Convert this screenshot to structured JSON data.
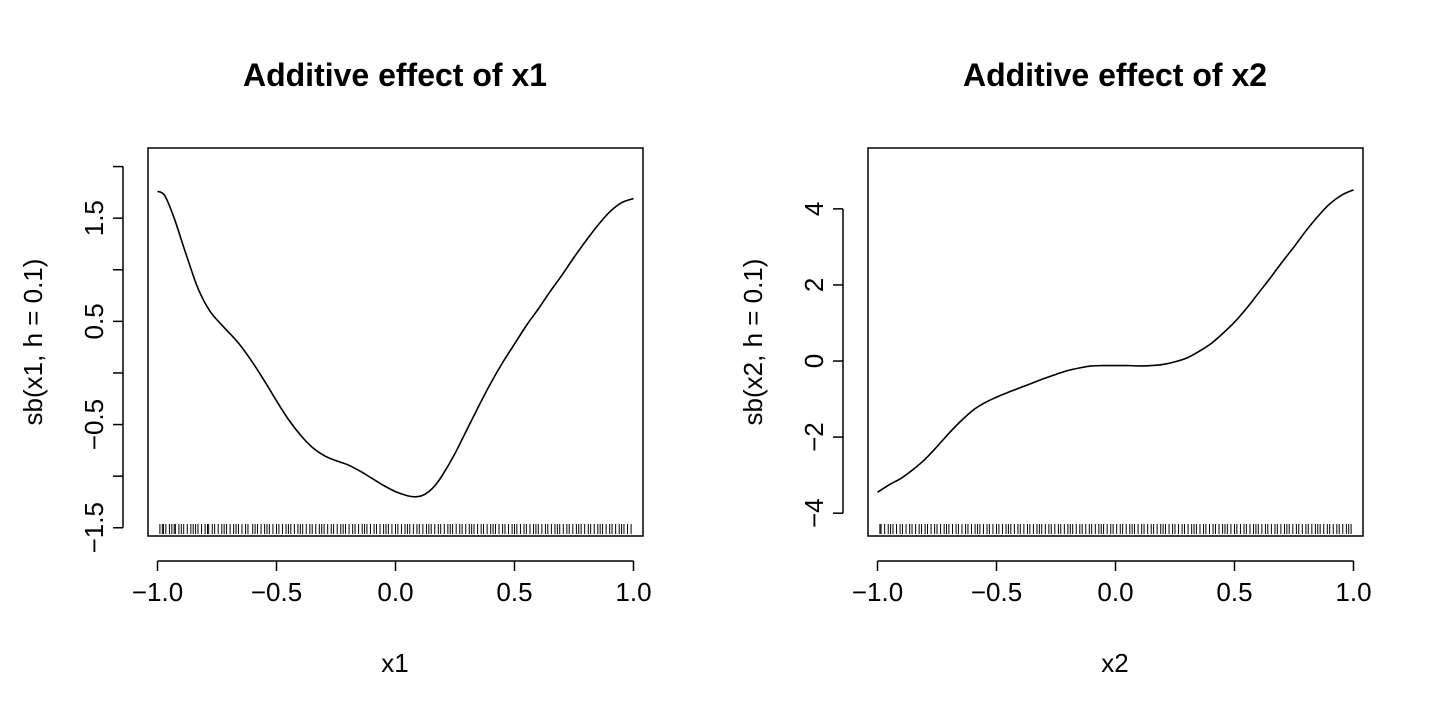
{
  "chart_data": [
    {
      "type": "line",
      "title": "Additive effect of x1",
      "xlabel": "x1",
      "ylabel": "sb(x1, h = 0.1)",
      "xlim": [
        -1.04,
        1.04
      ],
      "ylim": [
        -1.58,
        2.18
      ],
      "x_ticks": [
        -1.0,
        -0.5,
        0.0,
        0.5,
        1.0
      ],
      "x_tick_labels": [
        "−1.0",
        "−0.5",
        "0.0",
        "0.5",
        "1.0"
      ],
      "y_ticks": [
        -1.5,
        -1.0,
        -0.5,
        0.0,
        0.5,
        1.0,
        1.5,
        2.0
      ],
      "y_tick_labels": [
        "−1.5",
        "",
        "−0.5",
        "",
        "0.5",
        "",
        "1.5",
        ""
      ],
      "grid": false,
      "legend": "none",
      "rug": true,
      "line_color": "#000000",
      "series": [
        {
          "x": [
            -1.0,
            -0.97,
            -0.93,
            -0.88,
            -0.83,
            -0.78,
            -0.72,
            -0.66,
            -0.6,
            -0.55,
            -0.5,
            -0.45,
            -0.4,
            -0.35,
            -0.3,
            -0.25,
            -0.2,
            -0.15,
            -0.1,
            -0.05,
            0.0,
            0.05,
            0.08,
            0.11,
            0.14,
            0.17,
            0.2,
            0.25,
            0.3,
            0.35,
            0.4,
            0.45,
            0.5,
            0.55,
            0.6,
            0.65,
            0.7,
            0.75,
            0.8,
            0.85,
            0.9,
            0.95,
            1.0
          ],
          "y": [
            1.76,
            1.72,
            1.5,
            1.15,
            0.82,
            0.6,
            0.44,
            0.29,
            0.1,
            -0.08,
            -0.27,
            -0.45,
            -0.6,
            -0.72,
            -0.8,
            -0.85,
            -0.89,
            -0.95,
            -1.02,
            -1.09,
            -1.15,
            -1.19,
            -1.2,
            -1.19,
            -1.15,
            -1.08,
            -0.98,
            -0.78,
            -0.55,
            -0.32,
            -0.1,
            0.1,
            0.28,
            0.46,
            0.62,
            0.79,
            0.95,
            1.12,
            1.28,
            1.43,
            1.56,
            1.65,
            1.69
          ]
        }
      ],
      "rug_x": [
        -0.99,
        -0.98,
        -0.975,
        -0.965,
        -0.95,
        -0.94,
        -0.93,
        -0.925,
        -0.91,
        -0.9,
        -0.89,
        -0.875,
        -0.86,
        -0.85,
        -0.84,
        -0.83,
        -0.815,
        -0.8,
        -0.79,
        -0.785,
        -0.77,
        -0.76,
        -0.745,
        -0.73,
        -0.72,
        -0.71,
        -0.695,
        -0.68,
        -0.67,
        -0.66,
        -0.645,
        -0.63,
        -0.62,
        -0.6,
        -0.59,
        -0.58,
        -0.565,
        -0.55,
        -0.54,
        -0.53,
        -0.515,
        -0.5,
        -0.49,
        -0.475,
        -0.46,
        -0.45,
        -0.44,
        -0.425,
        -0.41,
        -0.4,
        -0.39,
        -0.375,
        -0.36,
        -0.35,
        -0.335,
        -0.32,
        -0.31,
        -0.3,
        -0.285,
        -0.27,
        -0.26,
        -0.245,
        -0.23,
        -0.22,
        -0.21,
        -0.195,
        -0.18,
        -0.17,
        -0.155,
        -0.14,
        -0.13,
        -0.12,
        -0.105,
        -0.09,
        -0.08,
        -0.065,
        -0.05,
        -0.04,
        -0.03,
        -0.015,
        0.0,
        0.01,
        0.025,
        0.04,
        0.05,
        0.06,
        0.075,
        0.09,
        0.1,
        0.115,
        0.13,
        0.14,
        0.15,
        0.165,
        0.18,
        0.19,
        0.205,
        0.22,
        0.23,
        0.24,
        0.255,
        0.27,
        0.28,
        0.295,
        0.31,
        0.32,
        0.33,
        0.345,
        0.36,
        0.37,
        0.385,
        0.4,
        0.41,
        0.42,
        0.435,
        0.45,
        0.46,
        0.475,
        0.49,
        0.5,
        0.51,
        0.525,
        0.54,
        0.55,
        0.565,
        0.58,
        0.59,
        0.6,
        0.615,
        0.63,
        0.64,
        0.655,
        0.67,
        0.68,
        0.69,
        0.705,
        0.72,
        0.73,
        0.745,
        0.76,
        0.77,
        0.78,
        0.795,
        0.81,
        0.82,
        0.835,
        0.85,
        0.86,
        0.87,
        0.885,
        0.9,
        0.91,
        0.925,
        0.94,
        0.95,
        0.96,
        0.975,
        0.99
      ]
    },
    {
      "type": "line",
      "title": "Additive effect of x2",
      "xlabel": "x2",
      "ylabel": "sb(x2, h = 0.1)",
      "xlim": [
        -1.04,
        1.04
      ],
      "ylim": [
        -4.6,
        5.6
      ],
      "x_ticks": [
        -1.0,
        -0.5,
        0.0,
        0.5,
        1.0
      ],
      "x_tick_labels": [
        "−1.0",
        "−0.5",
        "0.0",
        "0.5",
        "1.0"
      ],
      "y_ticks": [
        -4,
        -2,
        0,
        2,
        4
      ],
      "y_tick_labels": [
        "−4",
        "−2",
        "0",
        "2",
        "4"
      ],
      "grid": false,
      "legend": "none",
      "rug": true,
      "line_color": "#000000",
      "series": [
        {
          "x": [
            -1.0,
            -0.95,
            -0.9,
            -0.85,
            -0.8,
            -0.75,
            -0.7,
            -0.65,
            -0.6,
            -0.55,
            -0.5,
            -0.45,
            -0.4,
            -0.35,
            -0.3,
            -0.25,
            -0.2,
            -0.15,
            -0.1,
            -0.05,
            0.0,
            0.05,
            0.1,
            0.15,
            0.2,
            0.25,
            0.3,
            0.35,
            0.4,
            0.45,
            0.5,
            0.55,
            0.6,
            0.65,
            0.7,
            0.75,
            0.8,
            0.85,
            0.9,
            0.95,
            1.0
          ],
          "y": [
            -3.45,
            -3.25,
            -3.08,
            -2.85,
            -2.58,
            -2.25,
            -1.9,
            -1.58,
            -1.3,
            -1.1,
            -0.95,
            -0.82,
            -0.7,
            -0.58,
            -0.46,
            -0.35,
            -0.25,
            -0.18,
            -0.13,
            -0.12,
            -0.12,
            -0.12,
            -0.13,
            -0.12,
            -0.09,
            -0.02,
            0.08,
            0.25,
            0.45,
            0.72,
            1.02,
            1.38,
            1.78,
            2.18,
            2.6,
            3.0,
            3.42,
            3.8,
            4.13,
            4.36,
            4.5
          ]
        }
      ],
      "rug_x": [
        -0.99,
        -0.985,
        -0.97,
        -0.955,
        -0.945,
        -0.935,
        -0.92,
        -0.905,
        -0.895,
        -0.88,
        -0.865,
        -0.855,
        -0.84,
        -0.825,
        -0.815,
        -0.8,
        -0.79,
        -0.775,
        -0.76,
        -0.75,
        -0.735,
        -0.72,
        -0.71,
        -0.7,
        -0.685,
        -0.67,
        -0.66,
        -0.645,
        -0.63,
        -0.62,
        -0.605,
        -0.59,
        -0.58,
        -0.57,
        -0.555,
        -0.54,
        -0.53,
        -0.515,
        -0.5,
        -0.49,
        -0.475,
        -0.46,
        -0.45,
        -0.44,
        -0.425,
        -0.41,
        -0.4,
        -0.385,
        -0.37,
        -0.36,
        -0.345,
        -0.33,
        -0.32,
        -0.31,
        -0.295,
        -0.28,
        -0.27,
        -0.255,
        -0.24,
        -0.23,
        -0.215,
        -0.2,
        -0.19,
        -0.18,
        -0.165,
        -0.15,
        -0.14,
        -0.125,
        -0.11,
        -0.1,
        -0.085,
        -0.07,
        -0.06,
        -0.05,
        -0.035,
        -0.02,
        -0.01,
        0.005,
        0.02,
        0.03,
        0.045,
        0.06,
        0.07,
        0.08,
        0.095,
        0.11,
        0.12,
        0.135,
        0.15,
        0.16,
        0.175,
        0.19,
        0.2,
        0.21,
        0.225,
        0.24,
        0.25,
        0.265,
        0.28,
        0.29,
        0.305,
        0.32,
        0.33,
        0.34,
        0.355,
        0.37,
        0.38,
        0.395,
        0.41,
        0.42,
        0.435,
        0.45,
        0.46,
        0.47,
        0.485,
        0.5,
        0.51,
        0.525,
        0.54,
        0.55,
        0.565,
        0.58,
        0.59,
        0.6,
        0.615,
        0.63,
        0.64,
        0.655,
        0.67,
        0.68,
        0.695,
        0.71,
        0.72,
        0.73,
        0.745,
        0.76,
        0.77,
        0.785,
        0.8,
        0.81,
        0.825,
        0.84,
        0.85,
        0.86,
        0.875,
        0.89,
        0.9,
        0.915,
        0.93,
        0.94,
        0.955,
        0.97,
        0.98,
        0.99
      ]
    }
  ]
}
